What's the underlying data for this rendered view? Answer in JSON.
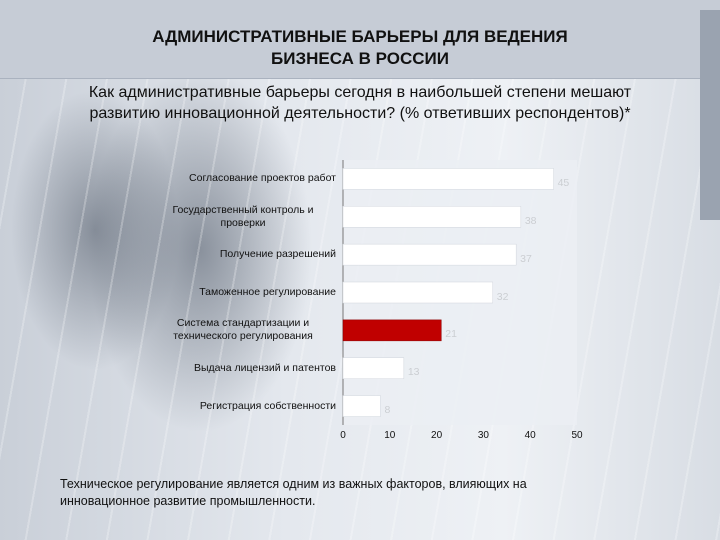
{
  "title": "АДМИНИСТРАТИВНЫЕ БАРЬЕРЫ ДЛЯ ВЕДЕНИЯ БИЗНЕСА В РОССИИ",
  "subtitle": "Как административные барьеры сегодня в наибольшей степени мешают развитию инновационной деятельности? (% ответивших респондентов)*",
  "footer": "Техническое регулирование является одним из важных факторов, влияющих на инновационное развитие промышленности.",
  "colors": {
    "bar": "#ffffff",
    "highlight": "#c00000"
  },
  "chart_data": {
    "type": "bar",
    "orientation": "horizontal",
    "categories": [
      "Согласование проектов работ",
      "Государственный контроль и проверки",
      "Получение разрешений",
      "Таможенное регулирование",
      "Система стандартизации и технического регулирования",
      "Выдача лицензий и патентов",
      "Регистрация собственности"
    ],
    "values": [
      45,
      38,
      37,
      32,
      21,
      13,
      8
    ],
    "highlight_index": 4,
    "xlim": [
      0,
      50
    ],
    "xticks": [
      0,
      10,
      20,
      30,
      40,
      50
    ],
    "grid": false
  }
}
